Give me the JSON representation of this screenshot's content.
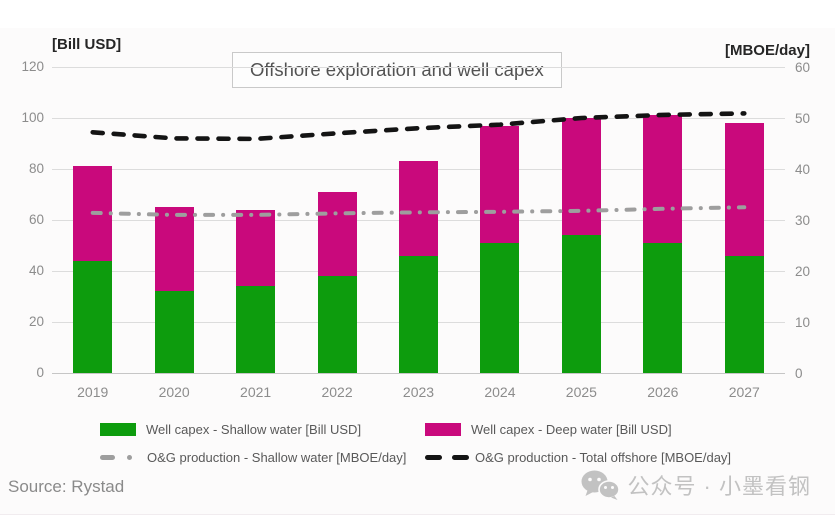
{
  "header": {
    "title": "Offshore exploration and well capex",
    "left_axis_unit": "[Bill USD]",
    "right_axis_unit": "[MBOE/day]"
  },
  "left_axis": {
    "ticks": [
      120,
      100,
      80,
      60,
      40,
      20,
      0
    ]
  },
  "right_axis": {
    "ticks": [
      60,
      50,
      40,
      30,
      20,
      10,
      0
    ]
  },
  "chart_data": {
    "type": "bar+line",
    "title": "Offshore exploration and well capex",
    "categories": [
      "2019",
      "2020",
      "2021",
      "2022",
      "2023",
      "2024",
      "2025",
      "2026",
      "2027"
    ],
    "left_ylim": [
      0,
      120
    ],
    "right_ylim": [
      0,
      60
    ],
    "left_axis_label": "[Bill USD]",
    "right_axis_label": "[MBOE/day]",
    "grid": "horizontal",
    "legend_position": "bottom",
    "series": [
      {
        "name": "Well capex - Shallow water [Bill USD]",
        "type": "bar",
        "stack": "capex",
        "axis": "left",
        "color": "#0d9c0d",
        "values": [
          44,
          32,
          34,
          38,
          46,
          51,
          54,
          51,
          46
        ]
      },
      {
        "name": "Well capex - Deep water [Bill USD]",
        "type": "bar",
        "stack": "capex",
        "axis": "left",
        "color": "#c9097c",
        "values": [
          37,
          33,
          30,
          33,
          37,
          46,
          46,
          50,
          52
        ]
      },
      {
        "name": "O&G production - Shallow water [MBOE/day]",
        "type": "line",
        "axis": "right",
        "style": "dash-dot",
        "color": "#9e9e9e",
        "values": [
          31.4,
          31.0,
          31.0,
          31.3,
          31.5,
          31.6,
          31.8,
          32.2,
          32.5
        ]
      },
      {
        "name": "O&G production - Total offshore [MBOE/day]",
        "type": "line",
        "axis": "right",
        "style": "dash",
        "color": "#141414",
        "values": [
          47.2,
          46.0,
          45.9,
          47.0,
          48.0,
          48.7,
          50.0,
          50.6,
          50.9
        ]
      }
    ],
    "stack_totals": [
      81,
      65,
      64,
      71,
      83,
      97,
      100,
      101,
      98
    ]
  },
  "colors": {
    "shallow_bar": "#0d9c0d",
    "deep_bar": "#c9097c",
    "total_line": "#141414",
    "shallow_line": "#9e9e9e",
    "gridline": "#dcdcdc"
  },
  "footer": {
    "source": "Source: Rystad",
    "watermark_text": "公众号 · 小墨看钢"
  }
}
